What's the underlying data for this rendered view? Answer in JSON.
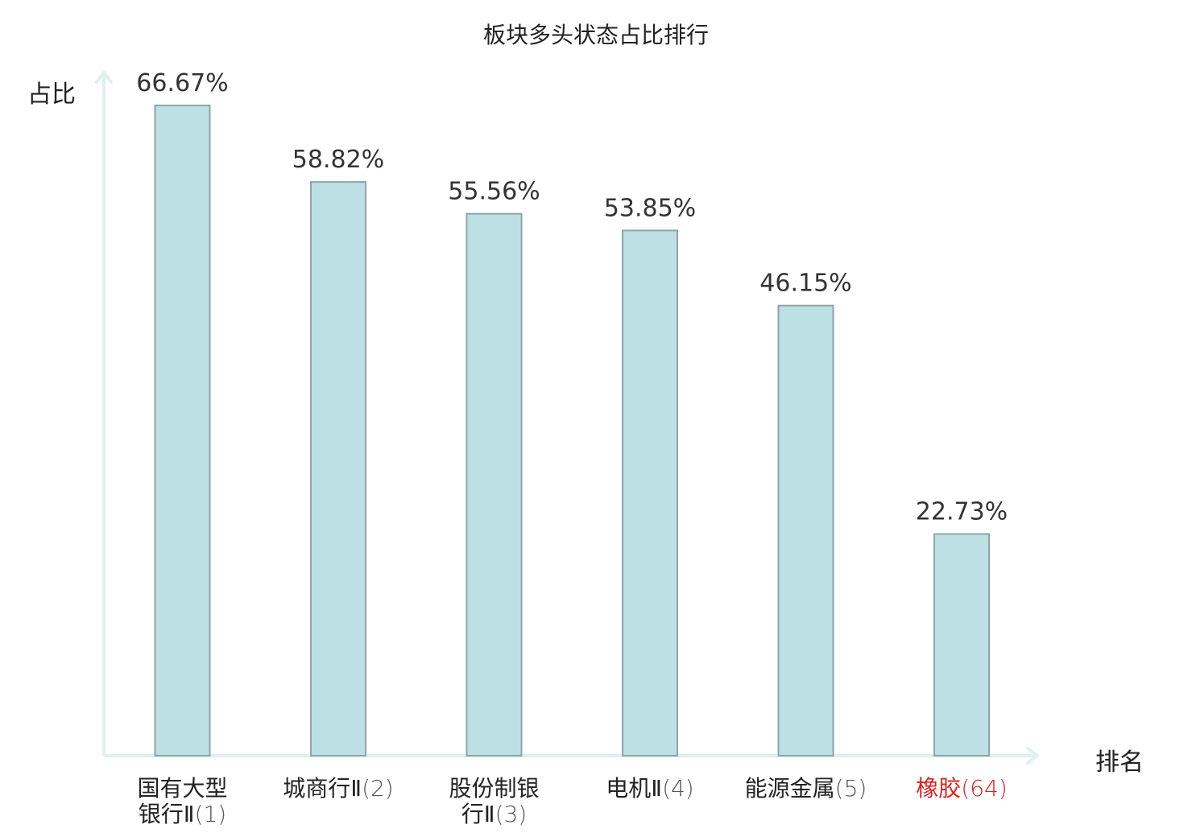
{
  "chart_data": {
    "type": "bar",
    "title": "板块多头状态占比排行",
    "ylabel": "占比",
    "xlabel": "排名",
    "ylim": [
      0,
      70
    ],
    "grid": false,
    "categories": [
      {
        "name": "国有大型银行Ⅱ",
        "rank": "(1)",
        "highlight": false
      },
      {
        "name": "城商行Ⅱ",
        "rank": "(2)",
        "highlight": false
      },
      {
        "name": "股份制银行Ⅱ",
        "rank": "(3)",
        "highlight": false
      },
      {
        "name": "电机Ⅱ",
        "rank": "(4)",
        "highlight": false
      },
      {
        "name": "能源金属",
        "rank": "(5)",
        "highlight": false
      },
      {
        "name": "橡胶",
        "rank": "(64)",
        "highlight": true
      }
    ],
    "values": [
      66.67,
      58.82,
      55.56,
      53.85,
      46.15,
      22.73
    ],
    "value_labels": [
      "66.67%",
      "58.82%",
      "55.56%",
      "53.85%",
      "46.15%",
      "22.73%"
    ],
    "colors": {
      "bar_fill": "#bce0e3",
      "bar_stroke": "#8aa6a8",
      "axis": "#dff0ee",
      "label_text": "#333333",
      "highlight_text": "#e02020"
    }
  }
}
